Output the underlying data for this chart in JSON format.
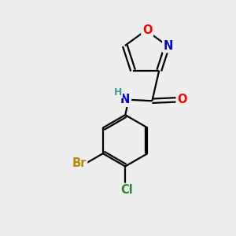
{
  "bg_color": "#eeeeee",
  "bond_color": "#000000",
  "atom_colors": {
    "O": "#ff0000",
    "N": "#0000cd",
    "Br": "#b8860b",
    "Cl": "#228b22",
    "C": "#000000",
    "H": "#4a9a9a"
  },
  "figsize": [
    3.0,
    3.0
  ],
  "dpi": 100,
  "lw": 1.6,
  "fs": 10.5
}
